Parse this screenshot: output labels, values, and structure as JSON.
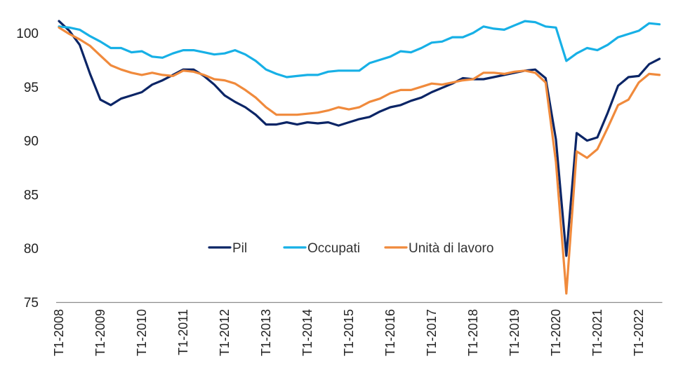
{
  "chart_data": {
    "type": "line",
    "title": "",
    "xlabel": "",
    "ylabel": "",
    "ylim": [
      75,
      102
    ],
    "yticks": [
      75,
      80,
      85,
      90,
      95,
      100
    ],
    "grid": false,
    "legend_position": "center",
    "x": [
      "T1-2008",
      "T2-2008",
      "T3-2008",
      "T4-2008",
      "T1-2009",
      "T2-2009",
      "T3-2009",
      "T4-2009",
      "T1-2010",
      "T2-2010",
      "T3-2010",
      "T4-2010",
      "T1-2011",
      "T2-2011",
      "T3-2011",
      "T4-2011",
      "T1-2012",
      "T2-2012",
      "T3-2012",
      "T4-2012",
      "T1-2013",
      "T2-2013",
      "T3-2013",
      "T4-2013",
      "T1-2014",
      "T2-2014",
      "T3-2014",
      "T4-2014",
      "T1-2015",
      "T2-2015",
      "T3-2015",
      "T4-2015",
      "T1-2016",
      "T2-2016",
      "T3-2016",
      "T4-2016",
      "T1-2017",
      "T2-2017",
      "T3-2017",
      "T4-2017",
      "T1-2018",
      "T2-2018",
      "T3-2018",
      "T4-2018",
      "T1-2019",
      "T2-2019",
      "T3-2019",
      "T4-2019",
      "T1-2020",
      "T2-2020",
      "T3-2020",
      "T4-2020",
      "T1-2021",
      "T2-2021",
      "T3-2021",
      "T4-2021",
      "T1-2022",
      "T2-2022",
      "T3-2022"
    ],
    "xtick_labels": [
      "T1-2008",
      "T1-2009",
      "T1-2010",
      "T1-2011",
      "T1-2012",
      "T1-2013",
      "T1-2014",
      "T1-2015",
      "T1-2016",
      "T1-2017",
      "T1-2018",
      "T1-2019",
      "T1-2020",
      "T1-2021",
      "T1-2022"
    ],
    "series": [
      {
        "name": "Pil",
        "color": "#0b2566",
        "values": [
          101.1,
          100.2,
          98.9,
          96.2,
          93.8,
          93.3,
          93.9,
          94.2,
          94.5,
          95.2,
          95.6,
          96.1,
          96.6,
          96.6,
          96.0,
          95.2,
          94.2,
          93.6,
          93.1,
          92.4,
          91.5,
          91.5,
          91.7,
          91.5,
          91.7,
          91.6,
          91.7,
          91.4,
          91.7,
          92.0,
          92.2,
          92.7,
          93.1,
          93.3,
          93.7,
          94.0,
          94.5,
          94.9,
          95.3,
          95.8,
          95.7,
          95.7,
          95.9,
          96.1,
          96.3,
          96.5,
          96.6,
          95.8,
          90.1,
          79.3,
          90.7,
          90.0,
          90.3,
          92.6,
          95.1,
          95.9,
          96.0,
          97.1,
          97.6
        ]
      },
      {
        "name": "Occupati",
        "color": "#17b0e6",
        "values": [
          100.6,
          100.5,
          100.3,
          99.7,
          99.2,
          98.6,
          98.6,
          98.2,
          98.3,
          97.8,
          97.7,
          98.1,
          98.4,
          98.4,
          98.2,
          98.0,
          98.1,
          98.4,
          98.0,
          97.4,
          96.6,
          96.2,
          95.9,
          96.0,
          96.1,
          96.1,
          96.4,
          96.5,
          96.5,
          96.5,
          97.2,
          97.5,
          97.8,
          98.3,
          98.2,
          98.6,
          99.1,
          99.2,
          99.6,
          99.6,
          100.0,
          100.6,
          100.4,
          100.3,
          100.7,
          101.1,
          101.0,
          100.6,
          100.5,
          97.4,
          98.1,
          98.6,
          98.4,
          98.9,
          99.6,
          99.9,
          100.2,
          100.9,
          100.8
        ]
      },
      {
        "name": "Unità di lavoro",
        "color": "#f08a3c",
        "values": [
          100.5,
          99.9,
          99.4,
          98.8,
          97.9,
          97.0,
          96.6,
          96.3,
          96.1,
          96.3,
          96.1,
          96.0,
          96.5,
          96.4,
          96.1,
          95.7,
          95.6,
          95.3,
          94.7,
          94.0,
          93.1,
          92.4,
          92.4,
          92.4,
          92.5,
          92.6,
          92.8,
          93.1,
          92.9,
          93.1,
          93.6,
          93.9,
          94.4,
          94.7,
          94.7,
          95.0,
          95.3,
          95.2,
          95.4,
          95.6,
          95.7,
          96.3,
          96.3,
          96.2,
          96.4,
          96.5,
          96.3,
          95.4,
          88.0,
          75.8,
          89.0,
          88.4,
          89.2,
          91.2,
          93.3,
          93.8,
          95.4,
          96.2,
          96.1
        ]
      }
    ]
  }
}
